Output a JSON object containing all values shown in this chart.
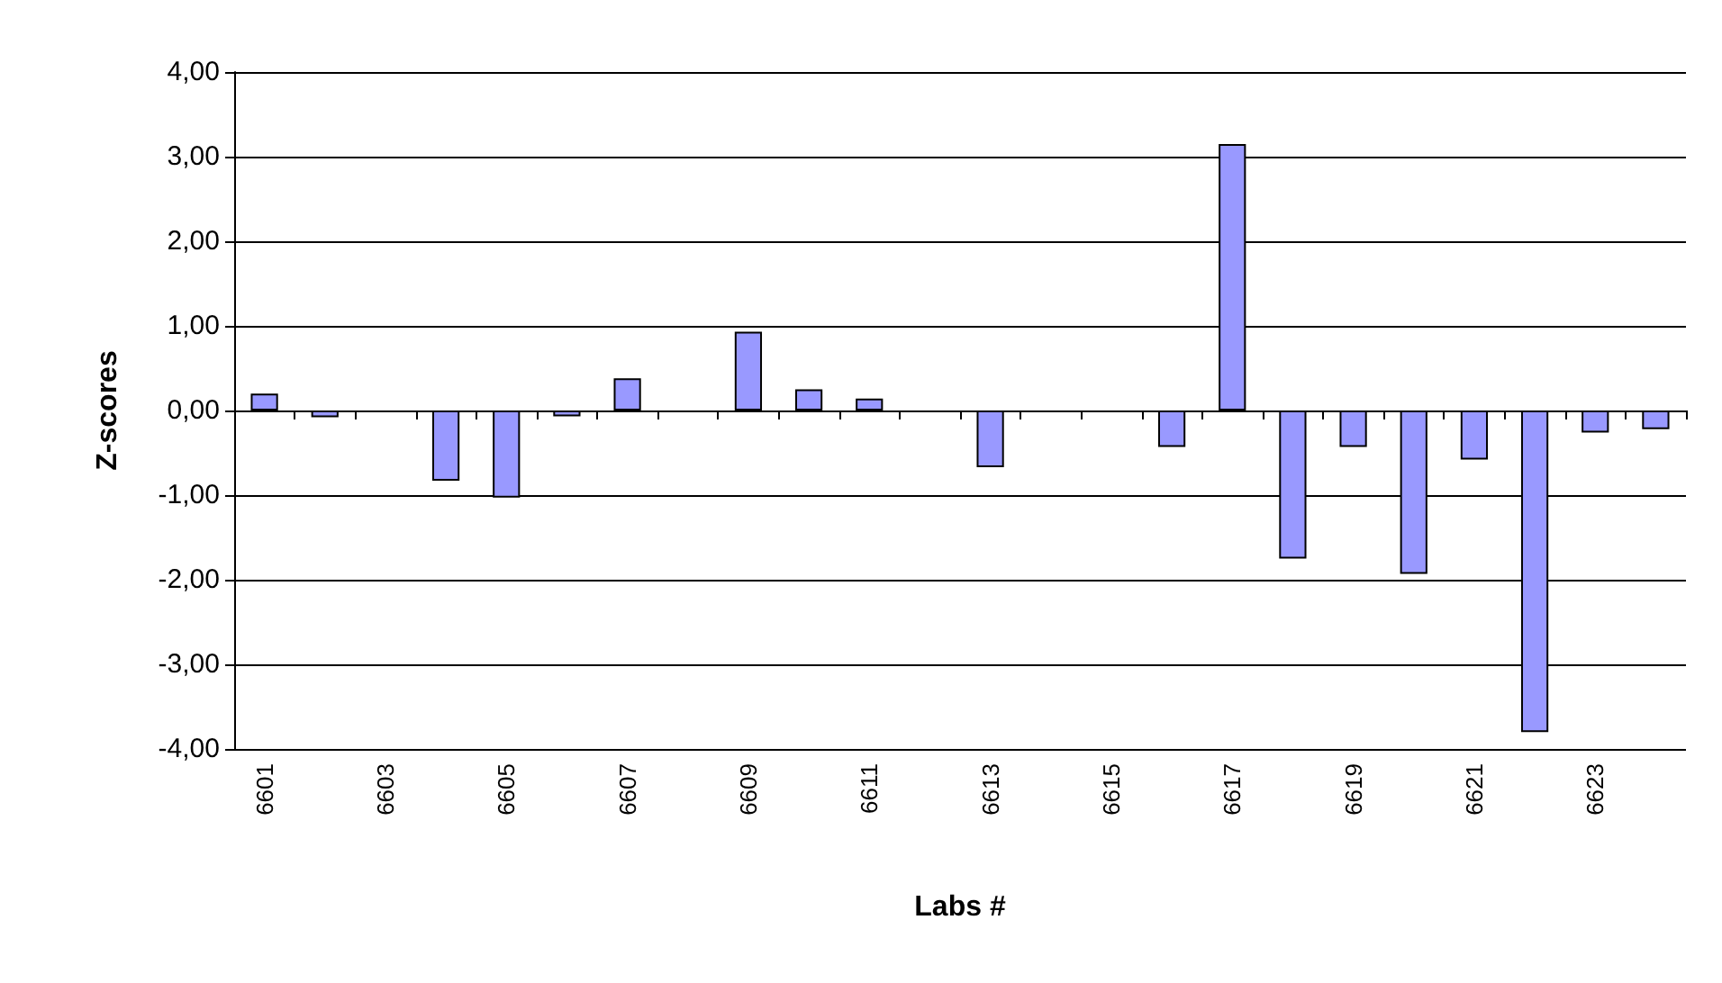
{
  "chart_data": {
    "type": "bar",
    "xlabel": "Labs #",
    "ylabel": "Z-scores",
    "categories": [
      "6601",
      null,
      "6603",
      null,
      "6605",
      null,
      "6607",
      null,
      "6609",
      null,
      "6611",
      null,
      "6613",
      null,
      "6615",
      null,
      "6617",
      null,
      "6619",
      null,
      "6621",
      null,
      "6623",
      null
    ],
    "values": [
      0.2,
      -0.08,
      null,
      -0.83,
      -1.03,
      -0.07,
      0.38,
      null,
      0.93,
      0.25,
      0.14,
      null,
      -0.67,
      null,
      null,
      -0.43,
      3.15,
      -1.75,
      -0.43,
      -1.93,
      -0.58,
      -3.8,
      -0.26,
      -0.22
    ],
    "color": "#9999ff",
    "ylim": [
      -4,
      4
    ],
    "yticks": [
      {
        "value": -4,
        "label": "-4,00"
      },
      {
        "value": -3,
        "label": "-3,00"
      },
      {
        "value": -2,
        "label": "-2,00"
      },
      {
        "value": -1,
        "label": "-1,00"
      },
      {
        "value": 0,
        "label": "0,00"
      },
      {
        "value": 1,
        "label": "1,00"
      },
      {
        "value": 2,
        "label": "2,00"
      },
      {
        "value": 3,
        "label": "3,00"
      },
      {
        "value": 4,
        "label": "4,00"
      }
    ],
    "grid": "y"
  }
}
